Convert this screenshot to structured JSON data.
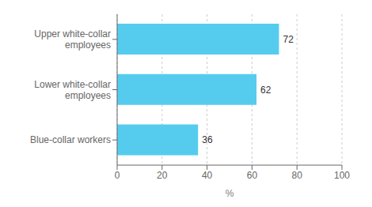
{
  "chart_data": {
    "type": "bar",
    "orientation": "horizontal",
    "categories": [
      "Blue-collar workers",
      "Lower white-collar\nemployees",
      "Upper white-collar\nemployees"
    ],
    "values": [
      36,
      62,
      72
    ],
    "color": "#55ccee",
    "xlabel": "%",
    "xlim": [
      0,
      100
    ],
    "xticks": [
      0,
      20,
      40,
      60,
      80,
      100
    ],
    "grid": true,
    "data_labels": true
  }
}
